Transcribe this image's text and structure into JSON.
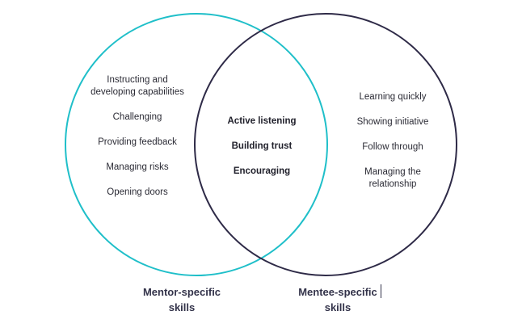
{
  "colors": {
    "mentor_circle": "#1fbfc9",
    "mentee_circle": "#2e2a47",
    "text": "#2b2b35",
    "caption": "#33334a"
  },
  "mentor_skills": [
    "Instructing and\ndeveloping capabilities",
    "Challenging",
    "Providing feedback",
    "Managing risks",
    "Opening doors"
  ],
  "shared_skills": [
    "Active listening",
    "Building trust",
    "Encouraging"
  ],
  "mentee_skills": [
    "Learning quickly",
    "Showing initiative",
    "Follow through",
    "Managing the\nrelationship"
  ],
  "captions": {
    "mentor_line1": "Mentor-specific",
    "mentor_line2": "skills",
    "mentee_line1": "Mentee-specific",
    "mentee_line2": "skills"
  }
}
